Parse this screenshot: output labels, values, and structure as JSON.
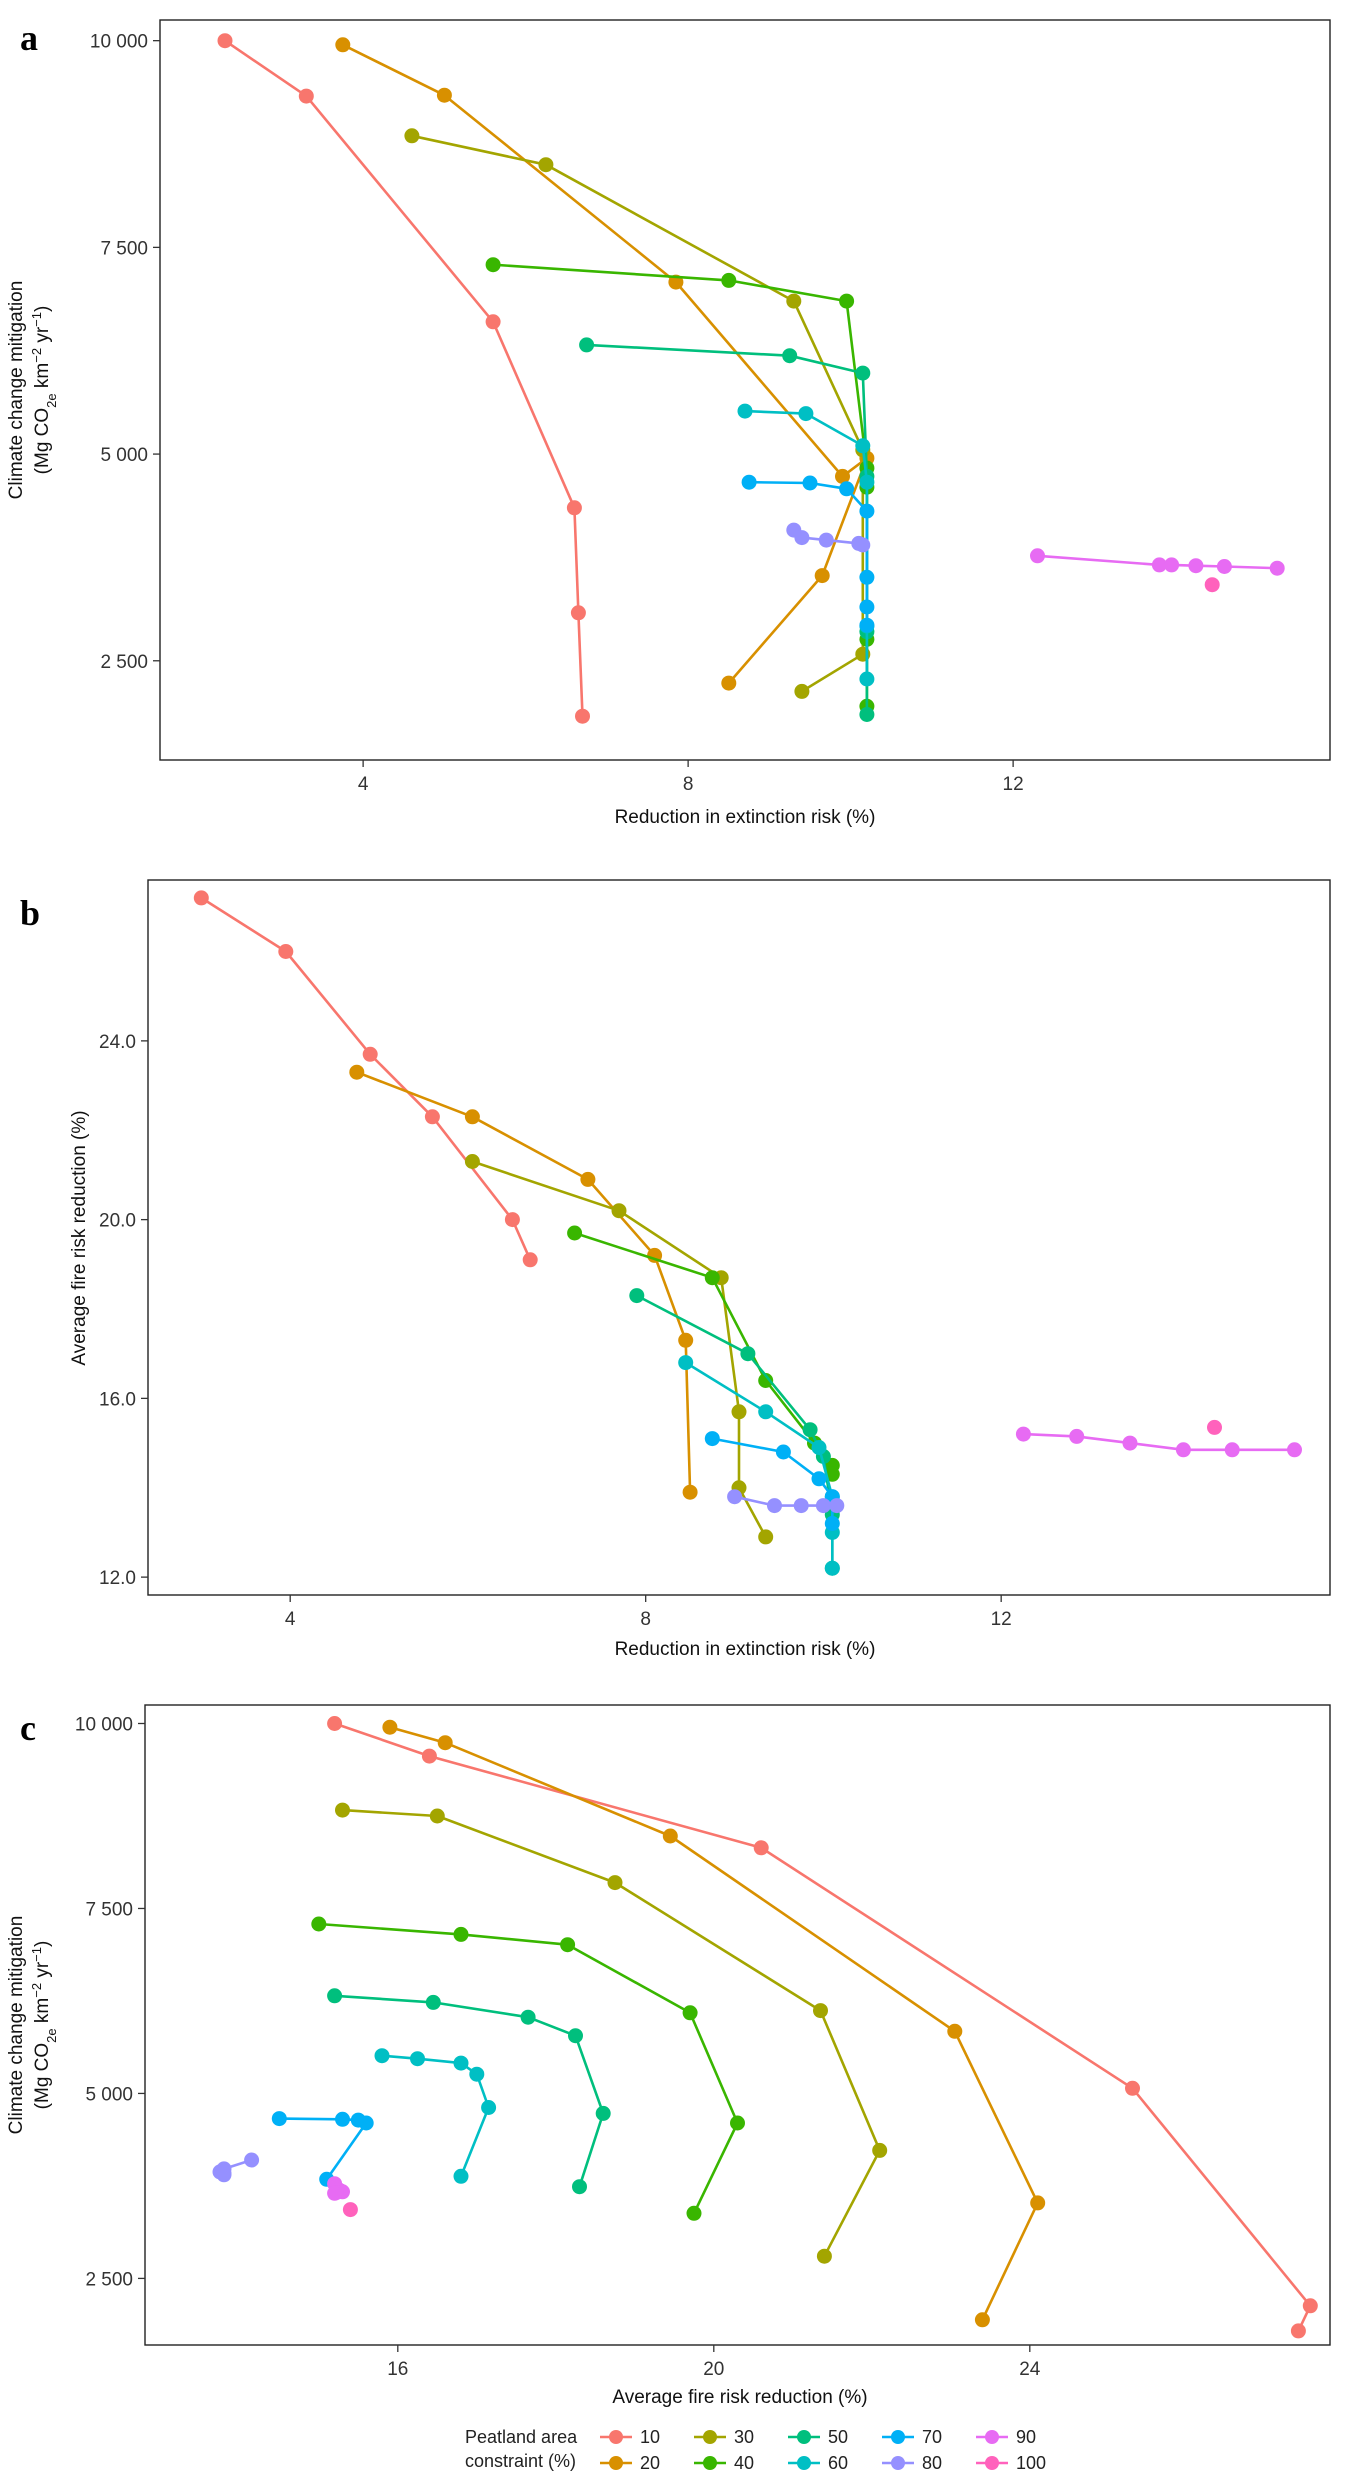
{
  "legend": {
    "title_line1": "Peatland area",
    "title_line2": "constraint (%)",
    "items": [
      {
        "key": "10",
        "color": "#F8766D"
      },
      {
        "key": "20",
        "color": "#D89000"
      },
      {
        "key": "30",
        "color": "#A3A500"
      },
      {
        "key": "40",
        "color": "#39B600"
      },
      {
        "key": "50",
        "color": "#00BF7D"
      },
      {
        "key": "60",
        "color": "#00BFC4"
      },
      {
        "key": "70",
        "color": "#00B0F6"
      },
      {
        "key": "80",
        "color": "#9590FF"
      },
      {
        "key": "90",
        "color": "#E76BF3"
      },
      {
        "key": "100",
        "color": "#FF62BC"
      }
    ]
  },
  "chart_data": [
    {
      "type": "line",
      "panel": "a",
      "xlabel": "Reduction in extinction risk (%)",
      "ylabel_line1": "Climate change mitigation",
      "ylabel_line2_parts": [
        "(Mg CO",
        "2e",
        " km",
        "−2",
        " yr",
        "−1",
        ")"
      ],
      "xlim": [
        1.5,
        15.9
      ],
      "ylim": [
        1300,
        10250
      ],
      "xticks": [
        {
          "v": 4,
          "label": "4"
        },
        {
          "v": 8,
          "label": "8"
        },
        {
          "v": 12,
          "label": "12"
        }
      ],
      "yticks": [
        {
          "v": 2500,
          "label": "2 500"
        },
        {
          "v": 5000,
          "label": "5 000"
        },
        {
          "v": 7500,
          "label": "7 500"
        },
        {
          "v": 10000,
          "label": "10 000"
        }
      ],
      "series": [
        {
          "key": "10",
          "points": [
            [
              2.3,
              10000
            ],
            [
              3.3,
              9330
            ],
            [
              5.6,
              6600
            ],
            [
              6.6,
              4350
            ],
            [
              6.65,
              3080
            ],
            [
              6.7,
              1830
            ]
          ]
        },
        {
          "key": "20",
          "points": [
            [
              3.75,
              9950
            ],
            [
              5.0,
              9340
            ],
            [
              7.85,
              7080
            ],
            [
              9.9,
              4730
            ],
            [
              10.2,
              4950
            ],
            [
              9.65,
              3530
            ],
            [
              8.5,
              2230
            ]
          ]
        },
        {
          "key": "30",
          "points": [
            [
              4.6,
              8850
            ],
            [
              6.25,
              8500
            ],
            [
              9.3,
              6850
            ],
            [
              10.15,
              5050
            ],
            [
              10.15,
              2580
            ],
            [
              9.4,
              2130
            ]
          ]
        },
        {
          "key": "40",
          "points": [
            [
              5.6,
              7290
            ],
            [
              8.5,
              7100
            ],
            [
              9.95,
              6850
            ],
            [
              10.2,
              4830
            ],
            [
              10.2,
              4600
            ],
            [
              10.2,
              2760
            ],
            [
              10.2,
              1950
            ]
          ]
        },
        {
          "key": "50",
          "points": [
            [
              6.75,
              6320
            ],
            [
              9.25,
              6190
            ],
            [
              10.15,
              5980
            ],
            [
              10.2,
              4730
            ],
            [
              10.2,
              2850
            ],
            [
              10.2,
              1850
            ]
          ]
        },
        {
          "key": "60",
          "points": [
            [
              8.7,
              5520
            ],
            [
              9.45,
              5490
            ],
            [
              10.15,
              5100
            ],
            [
              10.2,
              4660
            ],
            [
              10.2,
              2920
            ],
            [
              10.2,
              2280
            ]
          ]
        },
        {
          "key": "70",
          "points": [
            [
              8.75,
              4660
            ],
            [
              9.5,
              4650
            ],
            [
              9.95,
              4580
            ],
            [
              10.2,
              4310
            ],
            [
              10.2,
              3510
            ],
            [
              10.2,
              3150
            ],
            [
              10.2,
              2930
            ]
          ]
        },
        {
          "key": "80",
          "points": [
            [
              9.3,
              4080
            ],
            [
              9.4,
              3990
            ],
            [
              9.7,
              3960
            ],
            [
              10.1,
              3920
            ],
            [
              10.15,
              3900
            ]
          ]
        },
        {
          "key": "90",
          "points": [
            [
              12.3,
              3770
            ],
            [
              13.8,
              3660
            ],
            [
              13.95,
              3660
            ],
            [
              14.25,
              3650
            ],
            [
              14.6,
              3640
            ],
            [
              15.25,
              3620
            ]
          ]
        },
        {
          "key": "100",
          "points": [
            [
              14.45,
              3420
            ]
          ]
        }
      ]
    },
    {
      "type": "line",
      "panel": "b",
      "xlabel": "Reduction in extinction risk (%)",
      "ylabel_line1": "Average fire risk reduction (%)",
      "xlim": [
        2.4,
        15.7
      ],
      "ylim": [
        11.6,
        27.6
      ],
      "xticks": [
        {
          "v": 4,
          "label": "4"
        },
        {
          "v": 8,
          "label": "8"
        },
        {
          "v": 12,
          "label": "12"
        }
      ],
      "yticks": [
        {
          "v": 12,
          "label": "12.0"
        },
        {
          "v": 16,
          "label": "16.0"
        },
        {
          "v": 20,
          "label": "20.0"
        },
        {
          "v": 24,
          "label": "24.0"
        }
      ],
      "series": [
        {
          "key": "10",
          "points": [
            [
              3.0,
              27.2
            ],
            [
              3.95,
              26.0
            ],
            [
              4.9,
              23.7
            ],
            [
              5.6,
              22.3
            ],
            [
              6.5,
              20.0
            ],
            [
              6.7,
              19.1
            ]
          ]
        },
        {
          "key": "20",
          "points": [
            [
              4.75,
              23.3
            ],
            [
              6.05,
              22.3
            ],
            [
              7.35,
              20.9
            ],
            [
              8.1,
              19.2
            ],
            [
              8.45,
              17.3
            ],
            [
              8.5,
              13.9
            ]
          ]
        },
        {
          "key": "30",
          "points": [
            [
              6.05,
              21.3
            ],
            [
              7.7,
              20.2
            ],
            [
              8.85,
              18.7
            ],
            [
              9.05,
              15.7
            ],
            [
              9.05,
              14.0
            ],
            [
              9.35,
              12.9
            ]
          ]
        },
        {
          "key": "40",
          "points": [
            [
              7.2,
              19.7
            ],
            [
              8.75,
              18.7
            ],
            [
              9.35,
              16.4
            ],
            [
              9.9,
              15.0
            ],
            [
              10.1,
              14.5
            ],
            [
              10.1,
              14.3
            ]
          ]
        },
        {
          "key": "50",
          "points": [
            [
              7.9,
              18.3
            ],
            [
              9.15,
              17.0
            ],
            [
              9.85,
              15.3
            ],
            [
              10.0,
              14.7
            ],
            [
              10.1,
              13.4
            ],
            [
              10.1,
              12.2
            ]
          ]
        },
        {
          "key": "60",
          "points": [
            [
              8.45,
              16.8
            ],
            [
              9.35,
              15.7
            ],
            [
              9.95,
              14.9
            ],
            [
              10.1,
              13.8
            ],
            [
              10.1,
              13.0
            ],
            [
              10.1,
              12.2
            ]
          ]
        },
        {
          "key": "70",
          "points": [
            [
              8.75,
              15.1
            ],
            [
              9.55,
              14.8
            ],
            [
              9.95,
              14.2
            ],
            [
              10.1,
              13.8
            ],
            [
              10.1,
              13.2
            ]
          ]
        },
        {
          "key": "80",
          "points": [
            [
              9.0,
              13.8
            ],
            [
              9.45,
              13.6
            ],
            [
              9.75,
              13.6
            ],
            [
              10.0,
              13.6
            ],
            [
              10.15,
              13.6
            ]
          ]
        },
        {
          "key": "90",
          "points": [
            [
              12.25,
              15.2
            ],
            [
              12.85,
              15.15
            ],
            [
              13.45,
              15.0
            ],
            [
              14.05,
              14.85
            ],
            [
              14.6,
              14.85
            ],
            [
              15.3,
              14.85
            ]
          ]
        },
        {
          "key": "100",
          "points": [
            [
              14.4,
              15.35
            ]
          ]
        }
      ]
    },
    {
      "type": "line",
      "panel": "c",
      "xlabel": "Average fire risk reduction (%)",
      "ylabel_line1": "Climate change mitigation",
      "ylabel_line2_parts": [
        "(Mg CO",
        "2e",
        " km",
        "−2",
        " yr",
        "−1",
        ")"
      ],
      "xlim": [
        12.8,
        27.8
      ],
      "ylim": [
        1600,
        10250
      ],
      "xticks": [
        {
          "v": 16,
          "label": "16"
        },
        {
          "v": 20,
          "label": "20"
        },
        {
          "v": 24,
          "label": "24"
        }
      ],
      "yticks": [
        {
          "v": 2500,
          "label": "2 500"
        },
        {
          "v": 5000,
          "label": "5 000"
        },
        {
          "v": 7500,
          "label": "7 500"
        },
        {
          "v": 10000,
          "label": "10 000"
        }
      ],
      "series": [
        {
          "key": "10",
          "points": [
            [
              15.2,
              10000
            ],
            [
              16.4,
              9560
            ],
            [
              20.6,
              8320
            ],
            [
              25.3,
              5070
            ],
            [
              27.55,
              2130
            ],
            [
              27.4,
              1790
            ]
          ]
        },
        {
          "key": "20",
          "points": [
            [
              15.9,
              9950
            ],
            [
              16.6,
              9740
            ],
            [
              19.45,
              8480
            ],
            [
              23.05,
              5840
            ],
            [
              24.1,
              3520
            ],
            [
              23.4,
              1940
            ]
          ]
        },
        {
          "key": "30",
          "points": [
            [
              15.3,
              8830
            ],
            [
              16.5,
              8750
            ],
            [
              18.75,
              7850
            ],
            [
              21.35,
              6120
            ],
            [
              22.1,
              4230
            ],
            [
              21.4,
              2800
            ]
          ]
        },
        {
          "key": "40",
          "points": [
            [
              15.0,
              7290
            ],
            [
              16.8,
              7150
            ],
            [
              18.15,
              7010
            ],
            [
              19.7,
              6090
            ],
            [
              20.3,
              4600
            ],
            [
              19.75,
              3380
            ]
          ]
        },
        {
          "key": "50",
          "points": [
            [
              15.2,
              6320
            ],
            [
              16.45,
              6230
            ],
            [
              17.65,
              6030
            ],
            [
              18.25,
              5780
            ],
            [
              18.6,
              4730
            ],
            [
              18.3,
              3740
            ]
          ]
        },
        {
          "key": "60",
          "points": [
            [
              15.8,
              5510
            ],
            [
              16.25,
              5470
            ],
            [
              16.8,
              5410
            ],
            [
              17.0,
              5260
            ],
            [
              17.15,
              4810
            ],
            [
              16.8,
              3880
            ]
          ]
        },
        {
          "key": "70",
          "points": [
            [
              14.5,
              4660
            ],
            [
              15.3,
              4650
            ],
            [
              15.5,
              4640
            ],
            [
              15.6,
              4600
            ],
            [
              15.1,
              3840
            ]
          ]
        },
        {
          "key": "80",
          "points": [
            [
              14.15,
              4100
            ],
            [
              13.8,
              3980
            ],
            [
              13.75,
              3940
            ],
            [
              13.8,
              3920
            ],
            [
              13.8,
              3900
            ]
          ]
        },
        {
          "key": "90",
          "points": [
            [
              15.2,
              3780
            ],
            [
              15.25,
              3700
            ],
            [
              15.28,
              3680
            ],
            [
              15.3,
              3670
            ],
            [
              15.22,
              3660
            ],
            [
              15.2,
              3650
            ]
          ]
        },
        {
          "key": "100",
          "points": [
            [
              15.4,
              3430
            ]
          ]
        }
      ]
    }
  ]
}
